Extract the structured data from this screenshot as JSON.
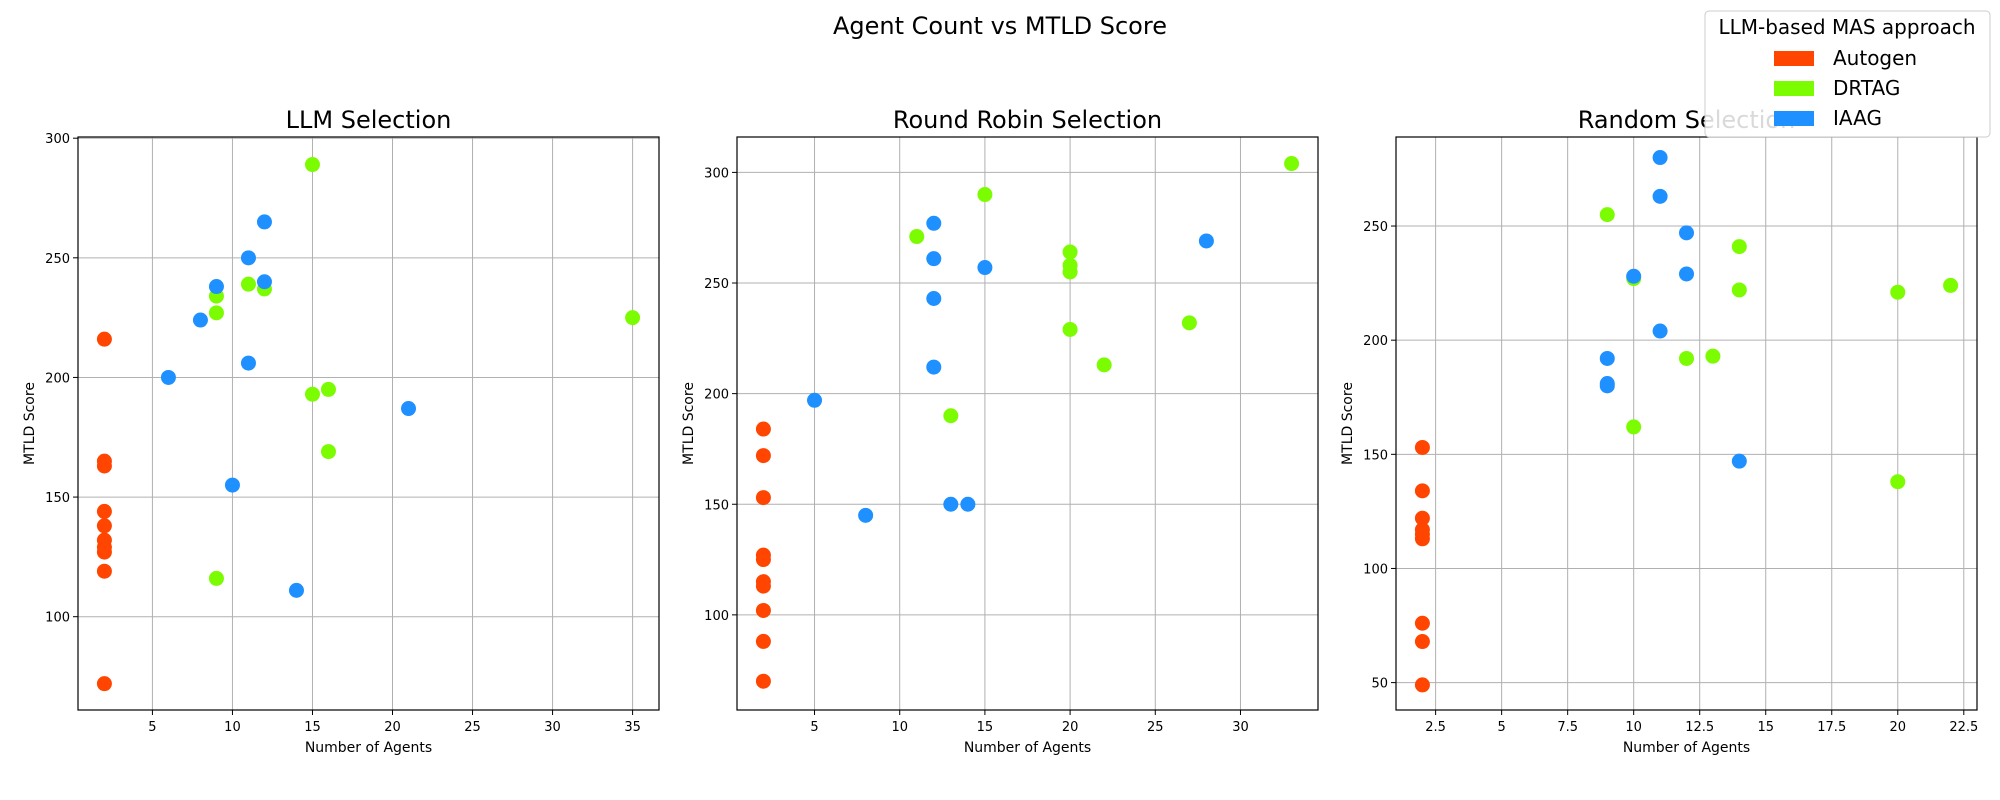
{
  "suptitle": "Agent Count vs MTLD Score",
  "legend": {
    "title": "LLM-based MAS approach",
    "placement": "top-right",
    "entries": [
      {
        "name": "Autogen",
        "color": "#ff4500"
      },
      {
        "name": "DRTAG",
        "color": "#7cfc00"
      },
      {
        "name": "IAAG",
        "color": "#1e90ff"
      }
    ]
  },
  "chart_data": [
    {
      "type": "scatter",
      "title": "LLM Selection",
      "xlabel": "Number of Agents",
      "ylabel": "MTLD Score",
      "xlim": [
        0.35,
        36.65
      ],
      "ylim": [
        61,
        300.5
      ],
      "xticks": [
        5,
        10,
        15,
        20,
        25,
        30,
        35
      ],
      "yticks": [
        100,
        150,
        200,
        250,
        300
      ],
      "grid": true,
      "series": [
        {
          "name": "Autogen",
          "color": "#ff4500",
          "points": [
            [
              2,
              216
            ],
            [
              2,
              165
            ],
            [
              2,
              163
            ],
            [
              2,
              144
            ],
            [
              2,
              138
            ],
            [
              2,
              132
            ],
            [
              2,
              129
            ],
            [
              2,
              127
            ],
            [
              2,
              119
            ],
            [
              2,
              72
            ]
          ]
        },
        {
          "name": "DRTAG",
          "color": "#7cfc00",
          "points": [
            [
              15,
              289
            ],
            [
              11,
              239
            ],
            [
              12,
              237
            ],
            [
              9,
              234
            ],
            [
              9,
              227
            ],
            [
              35,
              225
            ],
            [
              16,
              195
            ],
            [
              15,
              193
            ],
            [
              16,
              169
            ],
            [
              9,
              116
            ]
          ]
        },
        {
          "name": "IAAG",
          "color": "#1e90ff",
          "points": [
            [
              12,
              265
            ],
            [
              11,
              250
            ],
            [
              12,
              240
            ],
            [
              9,
              238
            ],
            [
              8,
              224
            ],
            [
              6,
              200
            ],
            [
              11,
              206
            ],
            [
              21,
              187
            ],
            [
              10,
              155
            ],
            [
              14,
              111
            ]
          ]
        }
      ]
    },
    {
      "type": "scatter",
      "title": "Round Robin Selection",
      "xlabel": "Number of Agents",
      "ylabel": "MTLD Score",
      "xlim": [
        0.45,
        34.55
      ],
      "ylim": [
        57,
        316
      ],
      "xticks": [
        5,
        10,
        15,
        20,
        25,
        30
      ],
      "yticks": [
        100,
        150,
        200,
        250,
        300
      ],
      "grid": true,
      "series": [
        {
          "name": "Autogen",
          "color": "#ff4500",
          "points": [
            [
              2,
              184
            ],
            [
              2,
              172
            ],
            [
              2,
              153
            ],
            [
              2,
              127
            ],
            [
              2,
              125
            ],
            [
              2,
              115
            ],
            [
              2,
              113
            ],
            [
              2,
              102
            ],
            [
              2,
              88
            ],
            [
              2,
              70
            ]
          ]
        },
        {
          "name": "DRTAG",
          "color": "#7cfc00",
          "points": [
            [
              33,
              304
            ],
            [
              15,
              290
            ],
            [
              11,
              271
            ],
            [
              20,
              264
            ],
            [
              20,
              258
            ],
            [
              20,
              255
            ],
            [
              20,
              229
            ],
            [
              27,
              232
            ],
            [
              22,
              213
            ],
            [
              13,
              190
            ]
          ]
        },
        {
          "name": "IAAG",
          "color": "#1e90ff",
          "points": [
            [
              12,
              277
            ],
            [
              12,
              261
            ],
            [
              15,
              257
            ],
            [
              28,
              269
            ],
            [
              12,
              243
            ],
            [
              12,
              212
            ],
            [
              5,
              197
            ],
            [
              8,
              145
            ],
            [
              13,
              150
            ],
            [
              14,
              150
            ]
          ]
        }
      ]
    },
    {
      "type": "scatter",
      "title": "Random Selection",
      "xlabel": "Number of Agents",
      "ylabel": "MTLD Score",
      "xlim": [
        1,
        23
      ],
      "ylim": [
        38,
        289
      ],
      "xticks": [
        2.5,
        5.0,
        7.5,
        10.0,
        12.5,
        15.0,
        17.5,
        20.0,
        22.5
      ],
      "yticks": [
        50,
        100,
        150,
        200,
        250
      ],
      "grid": true,
      "series": [
        {
          "name": "Autogen",
          "color": "#ff4500",
          "points": [
            [
              2,
              153
            ],
            [
              2,
              134
            ],
            [
              2,
              122
            ],
            [
              2,
              117
            ],
            [
              2,
              115
            ],
            [
              2,
              113
            ],
            [
              2,
              76
            ],
            [
              2,
              68
            ],
            [
              2,
              49
            ]
          ]
        },
        {
          "name": "DRTAG",
          "color": "#7cfc00",
          "points": [
            [
              9,
              255
            ],
            [
              14,
              241
            ],
            [
              10,
              227
            ],
            [
              14,
              222
            ],
            [
              20,
              221
            ],
            [
              22,
              224
            ],
            [
              12,
              192
            ],
            [
              13,
              193
            ],
            [
              10,
              162
            ],
            [
              20,
              138
            ]
          ]
        },
        {
          "name": "IAAG",
          "color": "#1e90ff",
          "points": [
            [
              11,
              280
            ],
            [
              11,
              263
            ],
            [
              12,
              247
            ],
            [
              10,
              228
            ],
            [
              12,
              229
            ],
            [
              11,
              204
            ],
            [
              9,
              192
            ],
            [
              9,
              180
            ],
            [
              9,
              181
            ],
            [
              14,
              147
            ]
          ]
        }
      ]
    }
  ]
}
